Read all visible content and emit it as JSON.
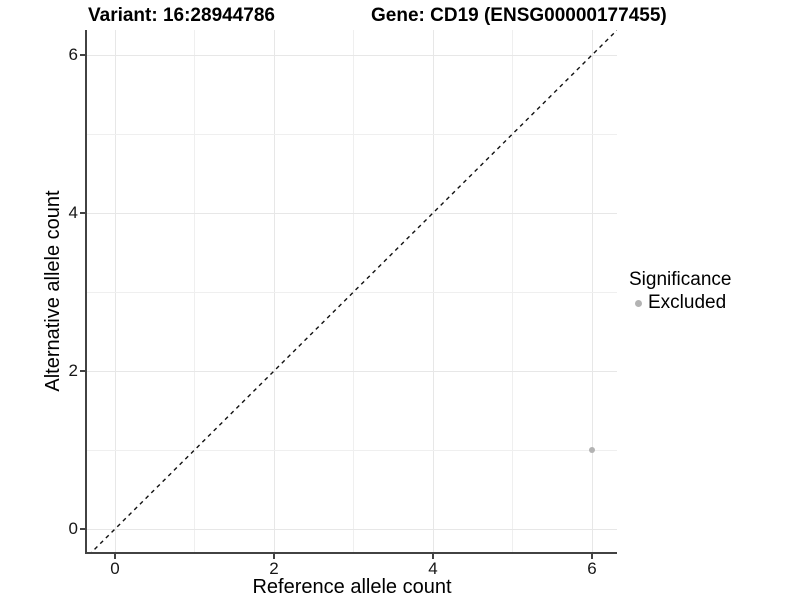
{
  "colors": {
    "background": "#ffffff",
    "grid_major": "#e7e7e7",
    "grid_minor": "#efefef",
    "axis_line": "#424242",
    "tick_label": "#171717",
    "identity_line": "#111111",
    "point": "#b3b3b3"
  },
  "chart_data": {
    "type": "scatter",
    "titles": {
      "left": "Variant: 16:28944786",
      "right": "Gene: CD19 (ENSG00000177455)"
    },
    "xlabel": "Reference allele count",
    "ylabel": "Alternative allele count",
    "xticks": [
      0,
      2,
      4,
      6
    ],
    "yticks": [
      0,
      2,
      4,
      6
    ],
    "grid_x": [
      0,
      1,
      2,
      3,
      4,
      5,
      6
    ],
    "grid_y": [
      0,
      1,
      2,
      3,
      4,
      5,
      6
    ],
    "xlim": [
      -0.35,
      6.35
    ],
    "ylim": [
      -0.3,
      6.35
    ],
    "grid": true,
    "series": [
      {
        "name": "Excluded",
        "color": "#b3b3b3",
        "points": [
          {
            "x": 6,
            "y": 1
          }
        ]
      }
    ],
    "identity_line": {
      "slope": 1,
      "intercept": 0,
      "style": "dashed",
      "color": "#111111"
    },
    "legend": {
      "position": "right",
      "title": "Significance",
      "entries": [
        {
          "label": "Excluded",
          "color": "#b3b3b3"
        }
      ]
    }
  }
}
